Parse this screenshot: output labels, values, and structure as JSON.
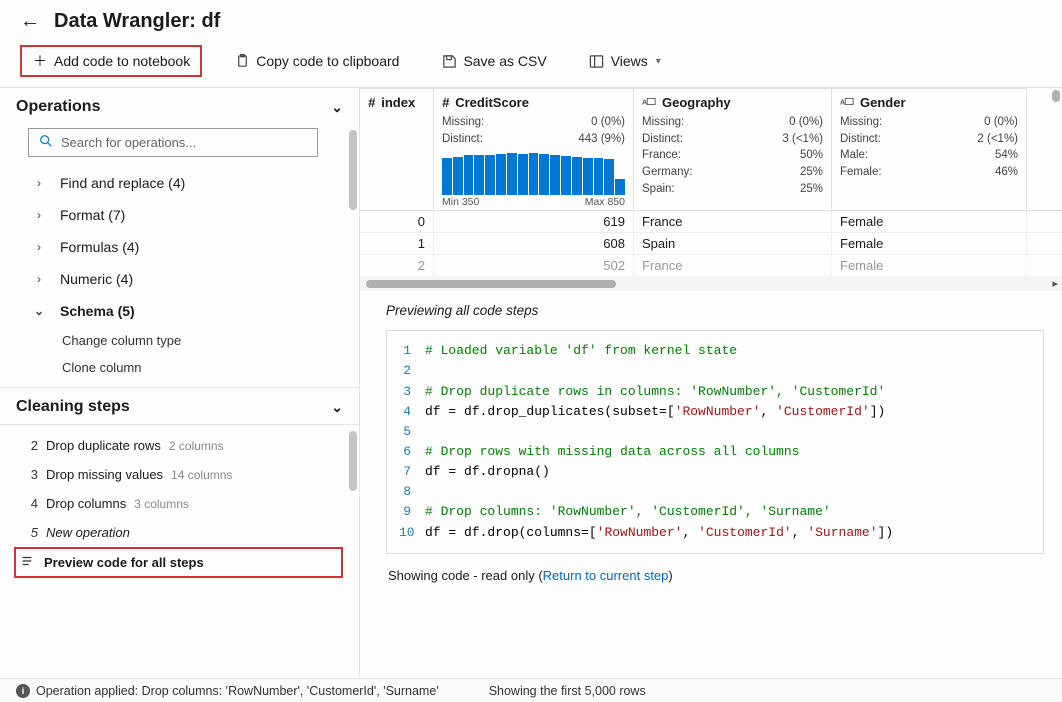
{
  "header": {
    "title": "Data Wrangler: df"
  },
  "toolbar": {
    "add_code": "Add code to notebook",
    "copy": "Copy code to clipboard",
    "save_csv": "Save as CSV",
    "views": "Views"
  },
  "operations": {
    "title": "Operations",
    "search_placeholder": "Search for operations...",
    "groups": [
      {
        "label": "Find and replace (4)",
        "expanded": false
      },
      {
        "label": "Format (7)",
        "expanded": false
      },
      {
        "label": "Formulas (4)",
        "expanded": false
      },
      {
        "label": "Numeric (4)",
        "expanded": false
      },
      {
        "label": "Schema (5)",
        "expanded": true,
        "items": [
          "Change column type",
          "Clone column"
        ]
      }
    ]
  },
  "steps": {
    "title": "Cleaning steps",
    "items": [
      {
        "num": "2",
        "label": "Drop duplicate rows",
        "meta": "2 columns"
      },
      {
        "num": "3",
        "label": "Drop missing values",
        "meta": "14 columns"
      },
      {
        "num": "4",
        "label": "Drop columns",
        "meta": "3 columns"
      },
      {
        "num": "5",
        "label": "New operation",
        "italic": true
      },
      {
        "num": "",
        "label": "Preview code for all steps",
        "active": true,
        "icon": true
      }
    ]
  },
  "grid": {
    "columns": [
      {
        "key": "index",
        "title": "index",
        "type_icon": "#",
        "width": "col-index"
      },
      {
        "key": "credit",
        "title": "CreditScore",
        "type_icon": "#",
        "width": "col-credit",
        "stats": [
          [
            "Missing:",
            "0 (0%)"
          ],
          [
            "Distinct:",
            "443 (9%)"
          ]
        ],
        "histogram": {
          "bars": [
            88,
            92,
            95,
            96,
            97,
            99,
            100,
            98,
            100,
            99,
            97,
            94,
            92,
            90,
            89,
            86,
            40
          ],
          "min_label": "Min 350",
          "max_label": "Max 850",
          "color": "#0078d4"
        }
      },
      {
        "key": "geo",
        "title": "Geography",
        "type_icon": "abc",
        "width": "col-geo",
        "stats": [
          [
            "Missing:",
            "0 (0%)"
          ],
          [
            "Distinct:",
            "3 (<1%)"
          ],
          [
            "France:",
            "50%"
          ],
          [
            "Germany:",
            "25%"
          ],
          [
            "Spain:",
            "25%"
          ]
        ]
      },
      {
        "key": "gender",
        "title": "Gender",
        "type_icon": "abc",
        "width": "col-gender",
        "stats": [
          [
            "Missing:",
            "0 (0%)"
          ],
          [
            "Distinct:",
            "2 (<1%)"
          ],
          [
            "Male:",
            "54%"
          ],
          [
            "Female:",
            "46%"
          ]
        ]
      }
    ],
    "rows": [
      {
        "index": "0",
        "credit": "619",
        "geo": "France",
        "gender": "Female"
      },
      {
        "index": "1",
        "credit": "608",
        "geo": "Spain",
        "gender": "Female"
      },
      {
        "index": "2",
        "credit": "502",
        "geo": "France",
        "gender": "Female"
      }
    ]
  },
  "code": {
    "heading": "Previewing all code steps",
    "lines": [
      {
        "n": 1,
        "t": "comment",
        "text": "# Loaded variable 'df' from kernel state"
      },
      {
        "n": 2,
        "t": "blank",
        "text": ""
      },
      {
        "n": 3,
        "t": "comment",
        "text": "# Drop duplicate rows in columns: 'RowNumber', 'CustomerId'"
      },
      {
        "n": 4,
        "t": "code",
        "parts": [
          "df = df.drop_duplicates(subset=[",
          {
            "s": "'RowNumber'"
          },
          ", ",
          {
            "s": "'CustomerId'"
          },
          "])"
        ]
      },
      {
        "n": 5,
        "t": "blank",
        "text": ""
      },
      {
        "n": 6,
        "t": "comment",
        "text": "# Drop rows with missing data across all columns"
      },
      {
        "n": 7,
        "t": "code",
        "parts": [
          "df = df.dropna()"
        ]
      },
      {
        "n": 8,
        "t": "blank",
        "text": ""
      },
      {
        "n": 9,
        "t": "comment",
        "text": "# Drop columns: 'RowNumber', 'CustomerId', 'Surname'"
      },
      {
        "n": 10,
        "t": "code",
        "parts": [
          "df = df.drop(columns=[",
          {
            "s": "'RowNumber'"
          },
          ", ",
          {
            "s": "'CustomerId'"
          },
          ", ",
          {
            "s": "'Surname'"
          },
          "])"
        ]
      }
    ],
    "footer_prefix": "Showing code - read only (",
    "footer_link": "Return to current step",
    "footer_suffix": ")"
  },
  "status": {
    "msg": "Operation applied: Drop columns: 'RowNumber', 'CustomerId', 'Surname'",
    "rows_msg": "Showing the first 5,000 rows"
  }
}
